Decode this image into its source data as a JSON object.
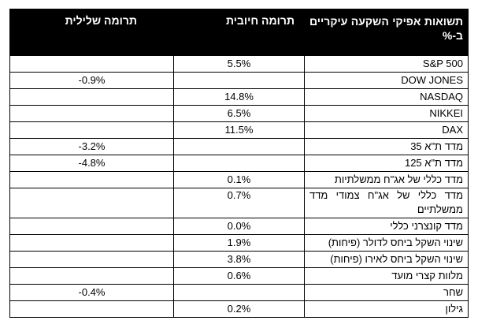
{
  "table": {
    "headers": {
      "name": "תשואות אפיקי השקעה עיקריים ב-%",
      "positive": "תרומה חיובית",
      "negative": "תרומה שלילית"
    },
    "rows": [
      {
        "name": "S&P 500",
        "positive": "5.5%",
        "negative": ""
      },
      {
        "name": "DOW JONES",
        "positive": "",
        "negative": "-0.9%"
      },
      {
        "name": "NASDAQ",
        "positive": "14.8%",
        "negative": ""
      },
      {
        "name": "NIKKEI",
        "positive": "6.5%",
        "negative": ""
      },
      {
        "name": "DAX",
        "positive": "11.5%",
        "negative": ""
      },
      {
        "name": "מדד ת\"א 35",
        "positive": "",
        "negative": "-3.2%"
      },
      {
        "name": "מדד ת\"א 125",
        "positive": "",
        "negative": "-4.8%"
      },
      {
        "name": "מדד כללי של אג\"ח ממשלתיות",
        "positive": "0.1%",
        "negative": ""
      },
      {
        "name": "מדד כללי של אג\"ח צמודי מדד ממשלתיים",
        "positive": "0.7%",
        "negative": ""
      },
      {
        "name": "מדד קונצרני כללי",
        "positive": "0.0%",
        "negative": ""
      },
      {
        "name": "שינוי השקל ביחס לדולר (פיחות)",
        "positive": "1.9%",
        "negative": ""
      },
      {
        "name": "שינוי השקל ביחס לאירו (פיחות)",
        "positive": "3.8%",
        "negative": ""
      },
      {
        "name": "מלוות קצרי מועד",
        "positive": "0.6%",
        "negative": ""
      },
      {
        "name": "שחר",
        "positive": "",
        "negative": "-0.4%"
      },
      {
        "name": "גילון",
        "positive": "0.2%",
        "negative": ""
      }
    ]
  }
}
